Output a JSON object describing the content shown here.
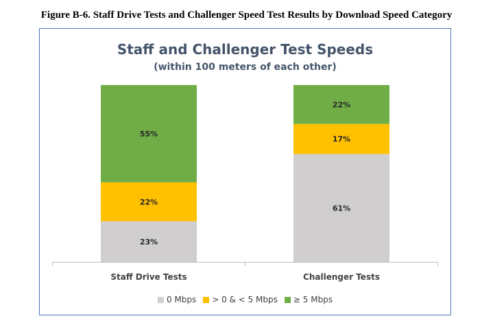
{
  "figure_caption": "Figure B-6.  Staff Drive Tests and Challenger Speed Test Results by Download Speed Category",
  "chart_data": {
    "type": "bar",
    "stacked": true,
    "title": "Staff and Challenger Test Speeds",
    "subtitle": "(within 100 meters of each other)",
    "categories": [
      "Staff Drive Tests",
      "Challenger Tests"
    ],
    "series": [
      {
        "name": "0 Mbps",
        "values": [
          23,
          61
        ],
        "color": "#d0cece"
      },
      {
        "name": "> 0 & < 5 Mbps",
        "values": [
          22,
          17
        ],
        "color": "#ffc000"
      },
      {
        "name": "≥ 5 Mbps",
        "values": [
          55,
          22
        ],
        "color": "#70ad47"
      }
    ],
    "value_suffix": "%",
    "ylim": [
      0,
      100
    ],
    "grid": false,
    "legend_position": "bottom"
  }
}
